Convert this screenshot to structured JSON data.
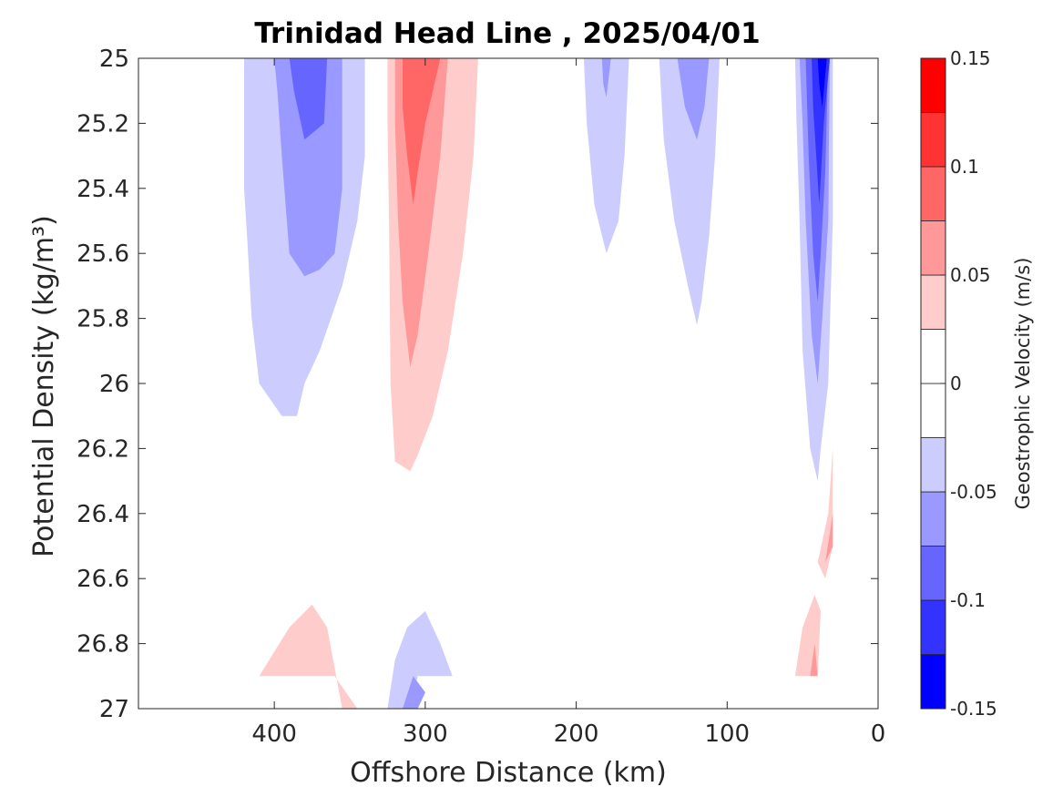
{
  "chart_data": {
    "type": "heatmap",
    "subtype": "filled-contour",
    "title": "Trinidad Head Line , 2025/04/01",
    "xlabel": "Offshore Distance (km)",
    "ylabel": "Potential Density (kg/m³)",
    "xlim": [
      490,
      0
    ],
    "x_reversed": true,
    "ylim": [
      25,
      27
    ],
    "y_reversed": true,
    "xticks": [
      400,
      300,
      200,
      100,
      0
    ],
    "yticks": [
      25,
      25.2,
      25.4,
      25.6,
      25.8,
      26,
      26.2,
      26.4,
      26.6,
      26.8,
      27
    ],
    "ytick_labels": [
      "25",
      "25.2",
      "25.4",
      "25.6",
      "25.8",
      "26",
      "26.2",
      "26.4",
      "26.6",
      "26.8",
      "27"
    ],
    "colorbar": {
      "label": "Geostrophic Velocity (m/s)",
      "range": [
        -0.15,
        0.15
      ],
      "tick_labels": [
        "0.15",
        "0.1",
        "0.05",
        "0",
        "-0.05",
        "-0.1",
        "-0.15"
      ],
      "tick_values": [
        0.15,
        0.1,
        0.05,
        0,
        -0.05,
        -0.1,
        -0.15
      ],
      "levels": [
        {
          "min": -0.15,
          "max": -0.125,
          "color": "#0000ff"
        },
        {
          "min": -0.125,
          "max": -0.1,
          "color": "#3333ff"
        },
        {
          "min": -0.1,
          "max": -0.075,
          "color": "#6666ff"
        },
        {
          "min": -0.075,
          "max": -0.05,
          "color": "#9999ff"
        },
        {
          "min": -0.05,
          "max": -0.025,
          "color": "#ccccff"
        },
        {
          "min": -0.025,
          "max": 0,
          "color": "#ffffff"
        },
        {
          "min": 0,
          "max": 0.025,
          "color": "#ffffff"
        },
        {
          "min": 0.025,
          "max": 0.05,
          "color": "#ffcccc"
        },
        {
          "min": 0.05,
          "max": 0.075,
          "color": "#ff9999"
        },
        {
          "min": 0.075,
          "max": 0.1,
          "color": "#ff6666"
        },
        {
          "min": 0.1,
          "max": 0.125,
          "color": "#ff3333"
        },
        {
          "min": 0.125,
          "max": 0.15,
          "color": "#ff0000"
        }
      ]
    },
    "regions": [
      {
        "name": "offshore-southward-core",
        "level": -0.05,
        "color": "#ccccff",
        "points": [
          [
            420,
            25
          ],
          [
            340,
            25
          ],
          [
            340,
            25.3
          ],
          [
            345,
            25.5
          ],
          [
            355,
            25.7
          ],
          [
            370,
            25.9
          ],
          [
            380,
            26
          ],
          [
            385,
            26.1
          ],
          [
            395,
            26.1
          ],
          [
            410,
            26
          ],
          [
            415,
            25.8
          ],
          [
            418,
            25.55
          ],
          [
            420,
            25.4
          ]
        ]
      },
      {
        "name": "offshore-southward-core",
        "level": -0.075,
        "color": "#9999ff",
        "points": [
          [
            400,
            25
          ],
          [
            355,
            25
          ],
          [
            355,
            25.4
          ],
          [
            360,
            25.6
          ],
          [
            370,
            25.65
          ],
          [
            380,
            25.67
          ],
          [
            390,
            25.6
          ],
          [
            395,
            25.3
          ],
          [
            398,
            25.1
          ]
        ]
      },
      {
        "name": "offshore-southward-core",
        "level": -0.1,
        "color": "#6666ff",
        "points": [
          [
            390,
            25
          ],
          [
            365,
            25
          ],
          [
            367,
            25.2
          ],
          [
            380,
            25.25
          ],
          [
            387,
            25.1
          ]
        ]
      },
      {
        "name": "northward-jet",
        "level": 0.05,
        "color": "#ffcccc",
        "points": [
          [
            325,
            25
          ],
          [
            265,
            25
          ],
          [
            268,
            25.3
          ],
          [
            275,
            25.6
          ],
          [
            285,
            25.9
          ],
          [
            295,
            26.1
          ],
          [
            305,
            26.22
          ],
          [
            310,
            26.27
          ],
          [
            320,
            26.24
          ],
          [
            323,
            26.0
          ],
          [
            324,
            25.5
          ],
          [
            325,
            25.2
          ]
        ]
      },
      {
        "name": "northward-jet",
        "level": 0.075,
        "color": "#ff9999",
        "points": [
          [
            320,
            25
          ],
          [
            285,
            25
          ],
          [
            290,
            25.3
          ],
          [
            298,
            25.6
          ],
          [
            305,
            25.85
          ],
          [
            310,
            25.95
          ],
          [
            315,
            25.75
          ],
          [
            318,
            25.5
          ],
          [
            320,
            25.2
          ]
        ]
      },
      {
        "name": "northward-jet",
        "level": 0.1,
        "color": "#ff6666",
        "points": [
          [
            315,
            25
          ],
          [
            290,
            25
          ],
          [
            300,
            25.2
          ],
          [
            305,
            25.35
          ],
          [
            308,
            25.45
          ],
          [
            312,
            25.3
          ],
          [
            315,
            25.15
          ]
        ]
      },
      {
        "name": "mid-southward",
        "level": -0.05,
        "color": "#ccccff",
        "points": [
          [
            195,
            25
          ],
          [
            165,
            25
          ],
          [
            168,
            25.3
          ],
          [
            172,
            25.5
          ],
          [
            180,
            25.6
          ],
          [
            188,
            25.45
          ],
          [
            193,
            25.2
          ]
        ]
      },
      {
        "name": "mid-southward",
        "level": -0.075,
        "color": "#9999ff",
        "points": [
          [
            183,
            25
          ],
          [
            177,
            25
          ],
          [
            180,
            25.12
          ],
          [
            182,
            25.08
          ]
        ]
      },
      {
        "name": "inner-southward",
        "level": -0.05,
        "color": "#ccccff",
        "points": [
          [
            145,
            25
          ],
          [
            105,
            25
          ],
          [
            108,
            25.3
          ],
          [
            112,
            25.55
          ],
          [
            117,
            25.75
          ],
          [
            120,
            25.82
          ],
          [
            126,
            25.7
          ],
          [
            135,
            25.5
          ],
          [
            142,
            25.25
          ]
        ]
      },
      {
        "name": "inner-southward",
        "level": -0.075,
        "color": "#9999ff",
        "points": [
          [
            133,
            25
          ],
          [
            112,
            25
          ],
          [
            115,
            25.15
          ],
          [
            120,
            25.25
          ],
          [
            128,
            25.15
          ]
        ]
      },
      {
        "name": "shelf-jet",
        "level": -0.05,
        "color": "#ccccff",
        "points": [
          [
            55,
            25
          ],
          [
            30,
            25
          ],
          [
            30,
            25.5
          ],
          [
            33,
            26.0
          ],
          [
            38,
            26.2
          ],
          [
            40,
            26.3
          ],
          [
            45,
            26.2
          ],
          [
            50,
            25.9
          ],
          [
            52,
            25.5
          ],
          [
            54,
            25.2
          ]
        ]
      },
      {
        "name": "shelf-jet",
        "level": -0.075,
        "color": "#9999ff",
        "points": [
          [
            52,
            25
          ],
          [
            32,
            25
          ],
          [
            33,
            25.5
          ],
          [
            37,
            25.8
          ],
          [
            40,
            26.0
          ],
          [
            44,
            25.85
          ],
          [
            48,
            25.5
          ],
          [
            50,
            25.2
          ]
        ]
      },
      {
        "name": "shelf-jet",
        "level": -0.1,
        "color": "#6666ff",
        "points": [
          [
            48,
            25
          ],
          [
            33,
            25
          ],
          [
            35,
            25.35
          ],
          [
            38,
            25.6
          ],
          [
            40,
            25.75
          ],
          [
            43,
            25.6
          ],
          [
            46,
            25.3
          ]
        ]
      },
      {
        "name": "shelf-jet",
        "level": -0.125,
        "color": "#3333ff",
        "points": [
          [
            44,
            25
          ],
          [
            32,
            25
          ],
          [
            36,
            25.2
          ],
          [
            39,
            25.45
          ],
          [
            41,
            25.3
          ],
          [
            43,
            25.15
          ]
        ]
      },
      {
        "name": "shelf-jet",
        "level": -0.15,
        "color": "#0000ff",
        "points": [
          [
            40,
            25
          ],
          [
            34,
            25
          ],
          [
            37,
            25.15
          ],
          [
            39,
            25.08
          ]
        ]
      },
      {
        "name": "deep-northward-west",
        "level": 0.05,
        "color": "#ffcccc",
        "points": [
          [
            410,
            26.9
          ],
          [
            390,
            26.75
          ],
          [
            375,
            26.68
          ],
          [
            365,
            26.75
          ],
          [
            355,
            27
          ],
          [
            345,
            27
          ],
          [
            360,
            26.9
          ]
        ]
      },
      {
        "name": "deep-southward-west",
        "level": -0.05,
        "color": "#ccccff",
        "points": [
          [
            325,
            27
          ],
          [
            320,
            26.85
          ],
          [
            312,
            26.75
          ],
          [
            300,
            26.7
          ],
          [
            290,
            26.8
          ],
          [
            282,
            26.9
          ],
          [
            305,
            26.9
          ],
          [
            310,
            27
          ]
        ]
      },
      {
        "name": "deep-southward-west",
        "level": -0.075,
        "color": "#9999ff",
        "points": [
          [
            315,
            27
          ],
          [
            308,
            26.9
          ],
          [
            300,
            26.95
          ],
          [
            305,
            27
          ]
        ]
      },
      {
        "name": "deep-northward-shelf",
        "level": 0.05,
        "color": "#ffcccc",
        "points": [
          [
            55,
            26.9
          ],
          [
            50,
            26.75
          ],
          [
            42,
            26.65
          ],
          [
            38,
            26.7
          ],
          [
            40,
            26.9
          ]
        ]
      },
      {
        "name": "deep-northward-shelf",
        "level": 0.075,
        "color": "#ff9999",
        "points": [
          [
            45,
            26.9
          ],
          [
            42,
            26.8
          ],
          [
            40,
            26.9
          ]
        ]
      },
      {
        "name": "upper-northward-shelf",
        "level": 0.05,
        "color": "#ffcccc",
        "points": [
          [
            40,
            26.55
          ],
          [
            33,
            26.4
          ],
          [
            30,
            26.2
          ],
          [
            30,
            26.5
          ],
          [
            35,
            26.6
          ]
        ]
      },
      {
        "name": "upper-northward-shelf",
        "level": 0.075,
        "color": "#ff9999",
        "points": [
          [
            35,
            26.55
          ],
          [
            30,
            26.4
          ],
          [
            30,
            26.5
          ]
        ]
      }
    ]
  }
}
